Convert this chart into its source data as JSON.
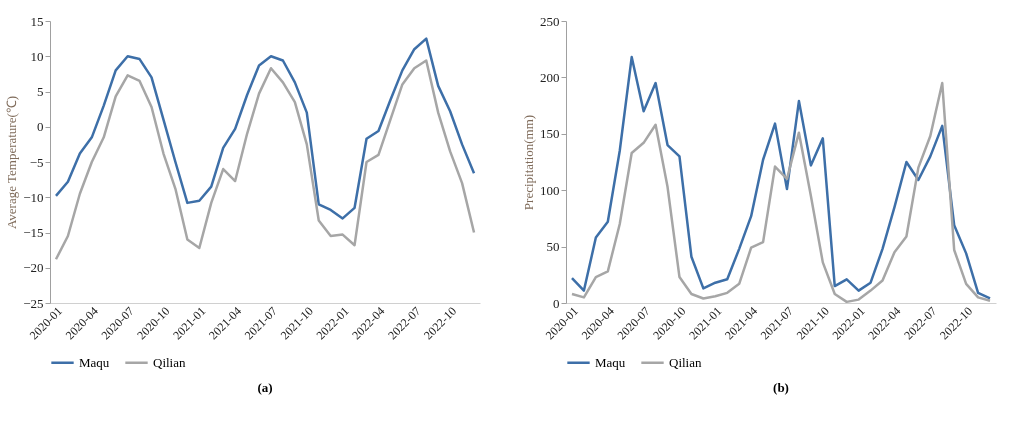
{
  "chart_data": [
    {
      "type": "line",
      "title": "(a)",
      "ylabel": "Average Temperature(℃)",
      "categories": [
        "2020-01",
        null,
        null,
        "2020-04",
        null,
        null,
        "2020-07",
        null,
        null,
        "2020-10",
        null,
        null,
        "2021-01",
        null,
        null,
        "2021-04",
        null,
        null,
        "2021-07",
        null,
        null,
        "2021-10",
        null,
        null,
        "2022-01",
        null,
        null,
        "2022-04",
        null,
        null,
        "2022-07",
        null,
        null,
        "2022-10",
        null,
        null
      ],
      "series": [
        {
          "name": "Maqu",
          "color": "#3d6fa8",
          "values": [
            -9.8,
            -7.8,
            -3.8,
            -1.5,
            3,
            8,
            10,
            9.6,
            7,
            1,
            -5,
            -10.8,
            -10.5,
            -8.5,
            -3,
            -0.3,
            4.5,
            8.7,
            10,
            9.4,
            6.3,
            2,
            -11,
            -11.8,
            -13,
            -11.5,
            -1.7,
            -0.6,
            3.8,
            8,
            11,
            12.5,
            5.8,
            2.2,
            -2.5,
            -6.6
          ]
        },
        {
          "name": "Qilian",
          "color": "#a6a6a6",
          "values": [
            -18.8,
            -15.5,
            -9.5,
            -5,
            -1.5,
            4.3,
            7.3,
            6.5,
            2.8,
            -3.8,
            -8.8,
            -16,
            -17.2,
            -10.8,
            -6,
            -7.7,
            -1,
            4.7,
            8.3,
            6.3,
            3.5,
            -2.5,
            -13.3,
            -15.5,
            -15.3,
            -16.8,
            -5,
            -4,
            1,
            6,
            8.3,
            9.4,
            2,
            -3.5,
            -8,
            -15
          ]
        }
      ],
      "ylim": [
        -25,
        15
      ],
      "yticks": [
        -25,
        -20,
        -15,
        -10,
        -5,
        0,
        5,
        10,
        15
      ],
      "grid": false,
      "legend": "bottom"
    },
    {
      "type": "line",
      "title": "(b)",
      "ylabel": "Precipitation(mm)",
      "categories": [
        "2020-01",
        null,
        null,
        "2020-04",
        null,
        null,
        "2020-07",
        null,
        null,
        "2020-10",
        null,
        null,
        "2021-01",
        null,
        null,
        "2021-04",
        null,
        null,
        "2021-07",
        null,
        null,
        "2021-10",
        null,
        null,
        "2022-01",
        null,
        null,
        "2022-04",
        null,
        null,
        "2022-07",
        null,
        null,
        "2022-10",
        null,
        null
      ],
      "series": [
        {
          "name": "Maqu",
          "color": "#3d6fa8",
          "values": [
            22,
            11,
            58,
            72,
            135,
            218,
            170,
            195,
            140,
            130,
            41,
            13,
            18,
            21,
            48,
            77,
            127,
            159,
            101,
            179,
            122,
            146,
            15,
            21,
            11,
            18,
            48,
            85,
            125,
            109,
            130,
            157,
            69,
            44,
            9,
            4
          ]
        },
        {
          "name": "Qilian",
          "color": "#a6a6a6",
          "values": [
            8,
            5,
            23,
            28,
            70,
            133,
            142,
            158,
            103,
            23,
            8,
            4,
            6,
            9,
            17,
            49,
            54,
            121,
            110,
            151,
            95,
            36,
            8,
            1,
            3,
            11,
            20,
            45,
            59,
            120,
            148,
            195,
            47,
            17,
            5,
            2
          ]
        }
      ],
      "ylim": [
        0,
        250
      ],
      "yticks": [
        0,
        50,
        100,
        150,
        200,
        250
      ],
      "grid": false,
      "legend": "bottom"
    }
  ]
}
